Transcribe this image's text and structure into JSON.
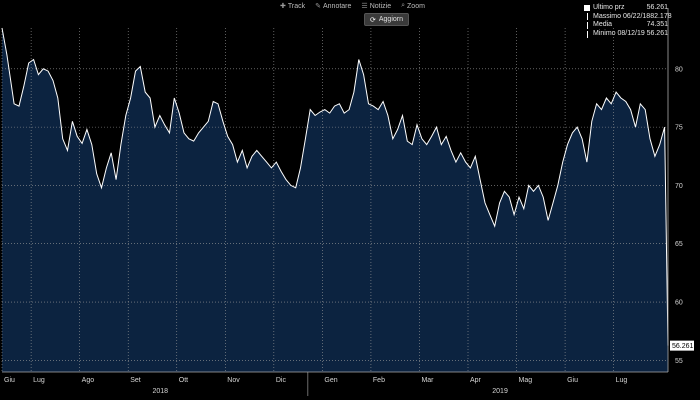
{
  "toolbar": {
    "items": [
      {
        "label": "Track",
        "icon": "plus-icon"
      },
      {
        "label": "Annotare",
        "icon": "pencil-icon"
      },
      {
        "label": "Notizie",
        "icon": "list-icon"
      },
      {
        "label": "Zoom",
        "icon": "search-icon"
      }
    ],
    "refresh_label": "Aggiorn"
  },
  "legend": {
    "rows": [
      {
        "label": "Ultimo prz",
        "value": "56.261"
      },
      {
        "label": "Massimo 06/22/18",
        "value": "82.178"
      },
      {
        "label": "Media",
        "value": "74.351"
      },
      {
        "label": "Minimo 08/12/19",
        "value": "56.261"
      }
    ]
  },
  "chart_data": {
    "type": "area",
    "title": "",
    "xlabel": "",
    "ylabel": "",
    "ylim": [
      54,
      83.5
    ],
    "yticks": [
      55,
      60,
      65,
      70,
      75,
      80
    ],
    "grid": true,
    "legend_position": "top-right",
    "last_value_label": "56.261",
    "colors": {
      "fill": "#0c2340",
      "line": "#ffffff",
      "grid": "#9a9a9a",
      "background": "#000000"
    },
    "month_ticks": [
      {
        "label": "Giu",
        "x": 0
      },
      {
        "label": "Lug",
        "x": 0.6
      },
      {
        "label": "Ago",
        "x": 1.6
      },
      {
        "label": "Set",
        "x": 2.6
      },
      {
        "label": "Ott",
        "x": 3.6
      },
      {
        "label": "Nov",
        "x": 4.6
      },
      {
        "label": "Dic",
        "x": 5.6
      },
      {
        "label": "Gen",
        "x": 6.6
      },
      {
        "label": "Feb",
        "x": 7.6
      },
      {
        "label": "Mar",
        "x": 8.6
      },
      {
        "label": "Apr",
        "x": 9.6
      },
      {
        "label": "Mag",
        "x": 10.6
      },
      {
        "label": "Giu",
        "x": 11.6
      },
      {
        "label": "Lug",
        "x": 12.6
      }
    ],
    "year_ticks": [
      {
        "label": "2018",
        "x": 3.1
      },
      {
        "label": "2019",
        "x": 10.1
      }
    ],
    "series": [
      {
        "values": [
          [
            0.0,
            83.5
          ],
          [
            0.1,
            81.2
          ],
          [
            0.25,
            77.0
          ],
          [
            0.35,
            76.8
          ],
          [
            0.45,
            78.5
          ],
          [
            0.55,
            80.5
          ],
          [
            0.65,
            80.8
          ],
          [
            0.75,
            79.5
          ],
          [
            0.85,
            80.0
          ],
          [
            0.95,
            79.8
          ],
          [
            1.05,
            79.0
          ],
          [
            1.15,
            77.5
          ],
          [
            1.25,
            74.0
          ],
          [
            1.35,
            73.0
          ],
          [
            1.45,
            75.5
          ],
          [
            1.55,
            74.2
          ],
          [
            1.65,
            73.6
          ],
          [
            1.75,
            74.8
          ],
          [
            1.85,
            73.5
          ],
          [
            1.95,
            71.0
          ],
          [
            2.05,
            69.8
          ],
          [
            2.15,
            71.5
          ],
          [
            2.25,
            72.8
          ],
          [
            2.35,
            70.5
          ],
          [
            2.45,
            73.5
          ],
          [
            2.55,
            76.0
          ],
          [
            2.65,
            77.5
          ],
          [
            2.75,
            79.8
          ],
          [
            2.85,
            80.2
          ],
          [
            2.95,
            78.0
          ],
          [
            3.05,
            77.5
          ],
          [
            3.15,
            75.0
          ],
          [
            3.25,
            76.0
          ],
          [
            3.35,
            75.2
          ],
          [
            3.45,
            74.5
          ],
          [
            3.55,
            77.5
          ],
          [
            3.65,
            76.2
          ],
          [
            3.75,
            74.5
          ],
          [
            3.85,
            74.0
          ],
          [
            3.95,
            73.8
          ],
          [
            4.05,
            74.5
          ],
          [
            4.15,
            75.0
          ],
          [
            4.25,
            75.5
          ],
          [
            4.35,
            77.2
          ],
          [
            4.45,
            77.0
          ],
          [
            4.55,
            75.5
          ],
          [
            4.65,
            74.2
          ],
          [
            4.75,
            73.5
          ],
          [
            4.85,
            72.0
          ],
          [
            4.95,
            73.0
          ],
          [
            5.05,
            71.5
          ],
          [
            5.15,
            72.5
          ],
          [
            5.25,
            73.0
          ],
          [
            5.35,
            72.5
          ],
          [
            5.45,
            72.0
          ],
          [
            5.55,
            71.5
          ],
          [
            5.65,
            72.0
          ],
          [
            5.75,
            71.2
          ],
          [
            5.85,
            70.5
          ],
          [
            5.95,
            70.0
          ],
          [
            6.05,
            69.8
          ],
          [
            6.15,
            71.5
          ],
          [
            6.25,
            74.0
          ],
          [
            6.35,
            76.5
          ],
          [
            6.45,
            76.0
          ],
          [
            6.55,
            76.3
          ],
          [
            6.65,
            76.5
          ],
          [
            6.75,
            76.2
          ],
          [
            6.85,
            76.8
          ],
          [
            6.95,
            77.0
          ],
          [
            7.05,
            76.2
          ],
          [
            7.15,
            76.5
          ],
          [
            7.25,
            78.0
          ],
          [
            7.35,
            80.8
          ],
          [
            7.45,
            79.5
          ],
          [
            7.55,
            77.0
          ],
          [
            7.65,
            76.8
          ],
          [
            7.75,
            76.5
          ],
          [
            7.85,
            77.2
          ],
          [
            7.95,
            76.0
          ],
          [
            8.05,
            74.0
          ],
          [
            8.15,
            74.8
          ],
          [
            8.25,
            76.0
          ],
          [
            8.35,
            73.8
          ],
          [
            8.45,
            73.5
          ],
          [
            8.55,
            75.2
          ],
          [
            8.65,
            74.0
          ],
          [
            8.75,
            73.5
          ],
          [
            8.85,
            74.2
          ],
          [
            8.95,
            75.0
          ],
          [
            9.05,
            73.5
          ],
          [
            9.15,
            74.2
          ],
          [
            9.25,
            73.0
          ],
          [
            9.35,
            72.0
          ],
          [
            9.45,
            72.8
          ],
          [
            9.55,
            72.0
          ],
          [
            9.65,
            71.5
          ],
          [
            9.75,
            72.5
          ],
          [
            9.85,
            70.5
          ],
          [
            9.95,
            68.5
          ],
          [
            10.05,
            67.5
          ],
          [
            10.15,
            66.5
          ],
          [
            10.25,
            68.5
          ],
          [
            10.35,
            69.5
          ],
          [
            10.45,
            69.0
          ],
          [
            10.55,
            67.5
          ],
          [
            10.65,
            69.0
          ],
          [
            10.75,
            68.0
          ],
          [
            10.85,
            70.0
          ],
          [
            10.95,
            69.5
          ],
          [
            11.05,
            70.0
          ],
          [
            11.15,
            69.0
          ],
          [
            11.25,
            67.0
          ],
          [
            11.35,
            68.5
          ],
          [
            11.45,
            70.0
          ],
          [
            11.55,
            72.0
          ],
          [
            11.65,
            73.5
          ],
          [
            11.75,
            74.5
          ],
          [
            11.85,
            75.0
          ],
          [
            11.95,
            74.0
          ],
          [
            12.05,
            72.0
          ],
          [
            12.15,
            75.5
          ],
          [
            12.25,
            77.0
          ],
          [
            12.35,
            76.5
          ],
          [
            12.45,
            77.5
          ],
          [
            12.55,
            77.0
          ],
          [
            12.65,
            78.0
          ],
          [
            12.75,
            77.5
          ],
          [
            12.85,
            77.2
          ],
          [
            12.95,
            76.5
          ],
          [
            13.05,
            75.0
          ],
          [
            13.15,
            77.0
          ],
          [
            13.25,
            76.5
          ],
          [
            13.35,
            74.0
          ],
          [
            13.45,
            72.5
          ],
          [
            13.55,
            73.5
          ],
          [
            13.65,
            75.0
          ],
          [
            13.72,
            56.261
          ]
        ]
      }
    ]
  }
}
